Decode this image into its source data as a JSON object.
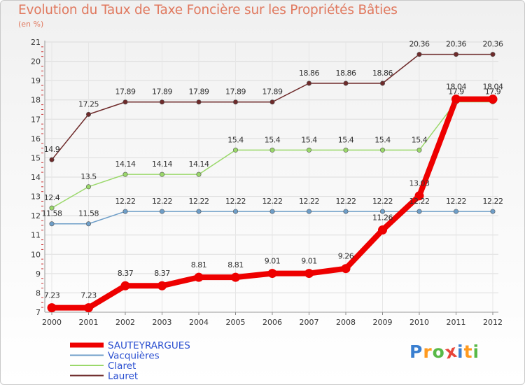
{
  "title": "Evolution du Taux de Taxe Foncière sur les Propriétés Bâties",
  "subtitle": "(en %)",
  "logo": [
    "P",
    "r",
    "o",
    "x",
    "i",
    "t",
    "i"
  ],
  "logo_colors": [
    "#3a7fd0",
    "#ff9a1f",
    "#58b947",
    "#e8463a",
    "#3a7fd0",
    "#ff9a1f",
    "#58b947"
  ],
  "chart_data": {
    "type": "line",
    "categories": [
      "2000",
      "2001",
      "2002",
      "2003",
      "2004",
      "2005",
      "2006",
      "2007",
      "2008",
      "2009",
      "2010",
      "2011",
      "2012"
    ],
    "ylim": [
      7,
      21
    ],
    "yticks": [
      7,
      8,
      9,
      10,
      11,
      12,
      13,
      14,
      15,
      16,
      17,
      18,
      19,
      20,
      21
    ],
    "series": [
      {
        "name": "Lauret",
        "color": "#6e2a2a",
        "values": [
          14.9,
          17.25,
          17.89,
          17.89,
          17.89,
          17.89,
          17.89,
          18.86,
          18.86,
          18.86,
          20.36,
          20.36,
          20.36
        ],
        "labels": [
          "14.9",
          "17.25",
          "17.89",
          "17.89",
          "17.89",
          "17.89",
          "17.89",
          "18.86",
          "18.86",
          "18.86",
          "20.36",
          "20.36",
          "20.36"
        ]
      },
      {
        "name": "Claret",
        "color": "#9ad86a",
        "values": [
          12.4,
          13.5,
          14.14,
          14.14,
          14.14,
          15.4,
          15.4,
          15.4,
          15.4,
          15.4,
          15.4,
          17.9,
          17.9
        ],
        "labels": [
          "12.4",
          "13.5",
          "14.14",
          "14.14",
          "14.14",
          "15.4",
          "15.4",
          "15.4",
          "15.4",
          "15.4",
          "15.4",
          "17.9",
          "17.9"
        ]
      },
      {
        "name": "Vacquières",
        "color": "#6e9ec8",
        "values": [
          11.58,
          11.58,
          12.22,
          12.22,
          12.22,
          12.22,
          12.22,
          12.22,
          12.22,
          12.22,
          12.22,
          12.22,
          12.22
        ],
        "labels": [
          "11.58",
          "11.58",
          "12.22",
          "12.22",
          "12.22",
          "12.22",
          "12.22",
          "12.22",
          "12.22",
          "12.22",
          "12.22",
          "12.22",
          "12.22"
        ]
      },
      {
        "name": "SAUTEYRARGUES",
        "color": "#ee0000",
        "values": [
          7.23,
          7.23,
          8.37,
          8.37,
          8.81,
          8.81,
          9.01,
          9.01,
          9.26,
          11.26,
          13.03,
          18.04,
          18.04
        ],
        "labels": [
          "7.23",
          "7.23",
          "8.37",
          "8.37",
          "8.81",
          "8.81",
          "9.01",
          "9.01",
          "9.26",
          "11.26",
          "13.03",
          "18.04",
          "18.04"
        ]
      }
    ],
    "legend": [
      {
        "name": "SAUTEYRARGUES",
        "color": "#ee0000"
      },
      {
        "name": "Vacquières",
        "color": "#6e9ec8"
      },
      {
        "name": "Claret",
        "color": "#9ad86a"
      },
      {
        "name": "Lauret",
        "color": "#6e2a2a"
      }
    ]
  }
}
